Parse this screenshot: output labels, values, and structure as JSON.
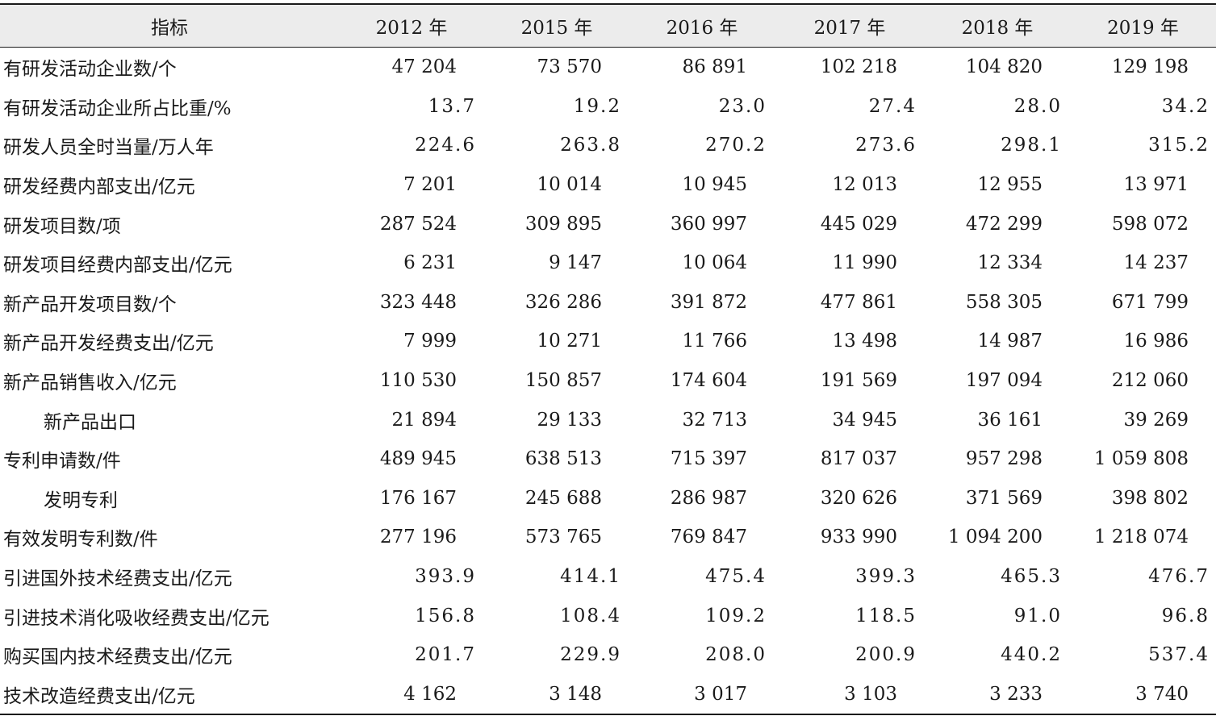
{
  "header": [
    "指标",
    "2012 年",
    "2015 年",
    "2016 年",
    "2017 年",
    "2018 年",
    "2019 年"
  ],
  "rows": [
    {
      "label": "有研发活动企业数/个",
      "indent": false,
      "decimal": false,
      "values": [
        "47 204",
        "73 570",
        "86 891",
        "102 218",
        "104 820",
        "129 198"
      ]
    },
    {
      "label": "有研发活动企业所占比重/%",
      "indent": false,
      "decimal": true,
      "values": [
        "13.7",
        "19.2",
        "23.0",
        "27.4",
        "28.0",
        "34.2"
      ]
    },
    {
      "label": "研发人员全时当量/万人年",
      "indent": false,
      "decimal": true,
      "values": [
        "224.6",
        "263.8",
        "270.2",
        "273.6",
        "298.1",
        "315.2"
      ]
    },
    {
      "label": "研发经费内部支出/亿元",
      "indent": false,
      "decimal": false,
      "values": [
        "7 201",
        "10 014",
        "10 945",
        "12 013",
        "12 955",
        "13 971"
      ]
    },
    {
      "label": "研发项目数/项",
      "indent": false,
      "decimal": false,
      "values": [
        "287 524",
        "309 895",
        "360 997",
        "445 029",
        "472 299",
        "598 072"
      ]
    },
    {
      "label": "研发项目经费内部支出/亿元",
      "indent": false,
      "decimal": false,
      "values": [
        "6 231",
        "9 147",
        "10 064",
        "11 990",
        "12 334",
        "14 237"
      ]
    },
    {
      "label": "新产品开发项目数/个",
      "indent": false,
      "decimal": false,
      "values": [
        "323 448",
        "326 286",
        "391 872",
        "477 861",
        "558 305",
        "671 799"
      ]
    },
    {
      "label": "新产品开发经费支出/亿元",
      "indent": false,
      "decimal": false,
      "values": [
        "7 999",
        "10 271",
        "11 766",
        "13 498",
        "14 987",
        "16 986"
      ]
    },
    {
      "label": "新产品销售收入/亿元",
      "indent": false,
      "decimal": false,
      "values": [
        "110 530",
        "150 857",
        "174 604",
        "191 569",
        "197 094",
        "212 060"
      ]
    },
    {
      "label": "新产品出口",
      "indent": true,
      "decimal": false,
      "values": [
        "21 894",
        "29 133",
        "32 713",
        "34 945",
        "36 161",
        "39 269"
      ]
    },
    {
      "label": "专利申请数/件",
      "indent": false,
      "decimal": false,
      "values": [
        "489 945",
        "638 513",
        "715 397",
        "817 037",
        "957 298",
        "1 059 808"
      ]
    },
    {
      "label": "发明专利",
      "indent": true,
      "decimal": false,
      "values": [
        "176 167",
        "245 688",
        "286 987",
        "320 626",
        "371 569",
        "398 802"
      ]
    },
    {
      "label": "有效发明专利数/件",
      "indent": false,
      "decimal": false,
      "values": [
        "277 196",
        "573 765",
        "769 847",
        "933 990",
        "1 094 200",
        "1 218 074"
      ]
    },
    {
      "label": "引进国外技术经费支出/亿元",
      "indent": false,
      "decimal": true,
      "values": [
        "393.9",
        "414.1",
        "475.4",
        "399.3",
        "465.3",
        "476.7"
      ]
    },
    {
      "label": "引进技术消化吸收经费支出/亿元",
      "indent": false,
      "decimal": true,
      "values": [
        "156.8",
        "108.4",
        "109.2",
        "118.5",
        "91.0",
        "96.8"
      ]
    },
    {
      "label": "购买国内技术经费支出/亿元",
      "indent": false,
      "decimal": true,
      "values": [
        "201.7",
        "229.9",
        "208.0",
        "200.9",
        "440.2",
        "537.4"
      ]
    },
    {
      "label": "技术改造经费支出/亿元",
      "indent": false,
      "decimal": false,
      "values": [
        "4 162",
        "3 148",
        "3 017",
        "3 103",
        "3 233",
        "3 740"
      ]
    }
  ]
}
